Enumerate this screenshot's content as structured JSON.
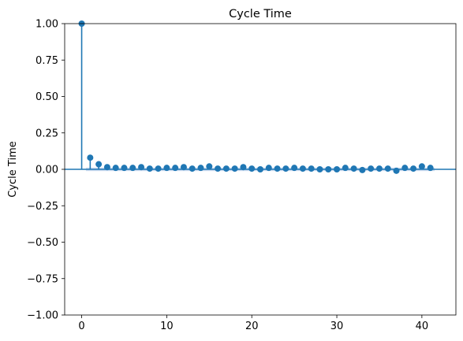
{
  "chart_data": {
    "type": "scatter",
    "subtype": "autocorrelation-stem",
    "title": "Cycle Time",
    "xlabel": "",
    "ylabel": "Cycle Time",
    "xlim": [
      -2,
      44
    ],
    "ylim": [
      -1.0,
      1.0
    ],
    "x_ticks": [
      0,
      10,
      20,
      30,
      40
    ],
    "y_ticks": [
      -1.0,
      -0.75,
      -0.5,
      -0.25,
      0.0,
      0.25,
      0.5,
      0.75,
      1.0
    ],
    "y_tick_labels": [
      "−1.00",
      "−0.75",
      "−0.50",
      "−0.25",
      "0.00",
      "0.25",
      "0.50",
      "0.75",
      "1.00"
    ],
    "x_tick_labels": [
      "0",
      "10",
      "20",
      "30",
      "40"
    ],
    "grid": false,
    "lags": [
      0,
      1,
      2,
      3,
      4,
      5,
      6,
      7,
      8,
      9,
      10,
      11,
      12,
      13,
      14,
      15,
      16,
      17,
      18,
      19,
      20,
      21,
      22,
      23,
      24,
      25,
      26,
      27,
      28,
      29,
      30,
      31,
      32,
      33,
      34,
      35,
      36,
      37,
      38,
      39,
      40,
      41
    ],
    "values": [
      1.0,
      0.08,
      0.035,
      0.015,
      0.01,
      0.01,
      0.01,
      0.015,
      0.005,
      0.005,
      0.01,
      0.01,
      0.015,
      0.005,
      0.01,
      0.02,
      0.005,
      0.005,
      0.005,
      0.015,
      0.005,
      0.0,
      0.01,
      0.005,
      0.005,
      0.01,
      0.005,
      0.005,
      0.0,
      0.0,
      0.0,
      0.01,
      0.005,
      -0.005,
      0.005,
      0.005,
      0.005,
      -0.01,
      0.01,
      0.005,
      0.02,
      0.01
    ],
    "confidence_band": 0.012,
    "colors": {
      "marker": "#1f77b4",
      "band": "#aec7e8",
      "axis": "#000000"
    }
  }
}
